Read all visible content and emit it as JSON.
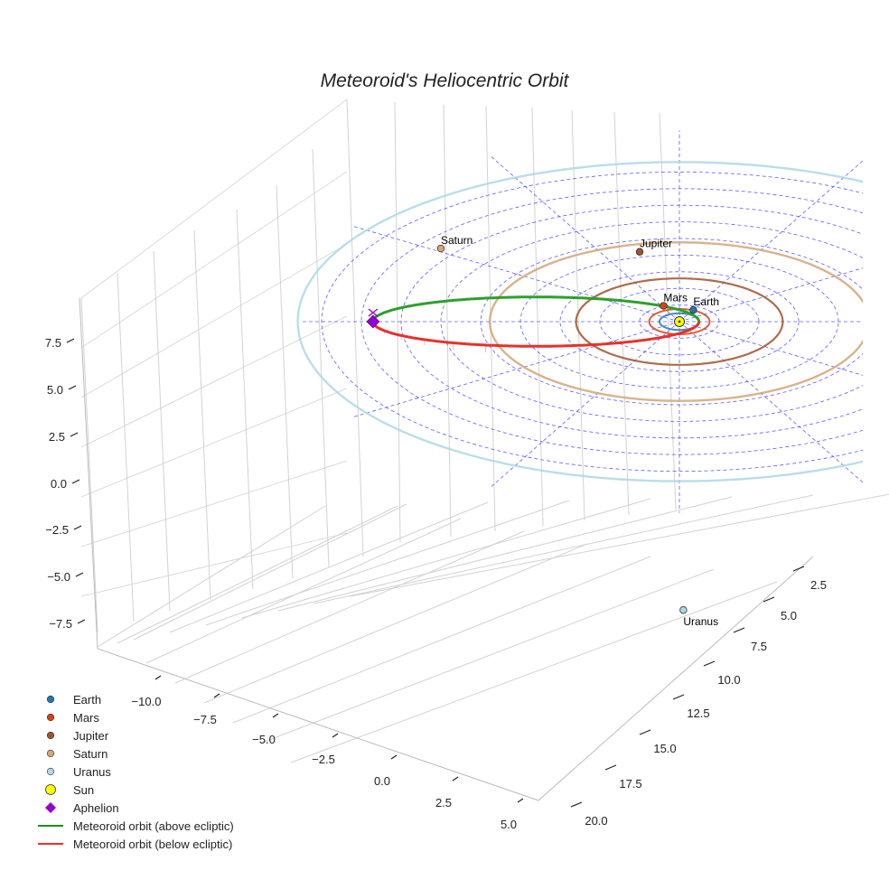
{
  "chart_data": {
    "type": "3d-orbit",
    "title": "Meteoroid's Heliocentric Orbit",
    "xlabel": "",
    "ylabel": "",
    "zlabel": "",
    "x_ticks": [
      "−10.0",
      "−7.5",
      "−5.0",
      "−2.5",
      "0.0",
      "2.5",
      "5.0"
    ],
    "y_ticks": [
      "2.5",
      "5.0",
      "7.5",
      "10.0",
      "12.5",
      "15.0",
      "17.5",
      "20.0"
    ],
    "z_ticks": [
      "7.5",
      "5.0",
      "2.5",
      "0.0",
      "−2.5",
      "−5.0",
      "−7.5"
    ],
    "planets": [
      {
        "name": "Earth",
        "a_au": 1.0,
        "color": "#1f77b4"
      },
      {
        "name": "Mars",
        "a_au": 1.52,
        "color": "#d84315"
      },
      {
        "name": "Jupiter",
        "a_au": 5.2,
        "color": "#a0522d"
      },
      {
        "name": "Saturn",
        "a_au": 9.54,
        "color": "#d2a679"
      },
      {
        "name": "Uranus",
        "a_au": 19.2,
        "color": "#add8e6"
      }
    ],
    "sun": {
      "name": "Sun",
      "color": "#ffff00"
    },
    "aphelion": {
      "name": "Aphelion",
      "color": "#9400d3"
    },
    "meteoroid": {
      "above_label": "Meteoroid orbit (above ecliptic)",
      "below_label": "Meteoroid orbit (below ecliptic)",
      "above_color": "#2ca02c",
      "below_color": "#e8302a"
    },
    "legend": [
      {
        "label": "Earth",
        "marker": "circle",
        "color": "#1f77b4"
      },
      {
        "label": "Mars",
        "marker": "circle",
        "color": "#d84315"
      },
      {
        "label": "Jupiter",
        "marker": "circle",
        "color": "#a0522d"
      },
      {
        "label": "Saturn",
        "marker": "circle",
        "color": "#d2a679"
      },
      {
        "label": "Uranus",
        "marker": "circle",
        "color": "#add8e6"
      },
      {
        "label": "Sun",
        "marker": "circle-large",
        "color": "#ffff00"
      },
      {
        "label": "Aphelion",
        "marker": "diamond",
        "color": "#9400d3"
      },
      {
        "label": "Meteoroid orbit (above ecliptic)",
        "marker": "line",
        "color": "#1e8e1e"
      },
      {
        "label": "Meteoroid orbit (below ecliptic)",
        "marker": "line",
        "color": "#e8302a"
      }
    ],
    "legend_position": "lower-left",
    "grid": true
  }
}
